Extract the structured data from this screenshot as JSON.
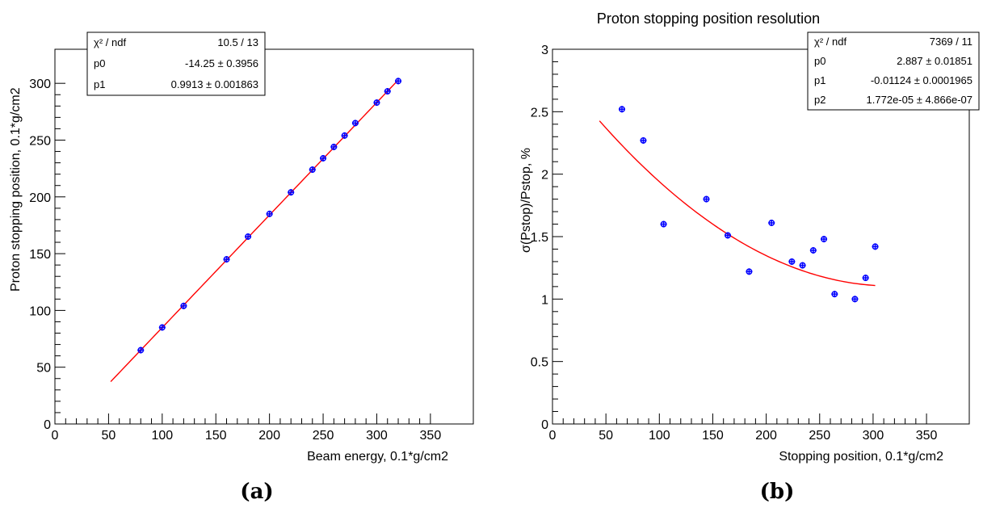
{
  "panels": [
    {
      "id": "a",
      "caption": "(a)",
      "stats": [
        {
          "label": "χ² / ndf",
          "value": "10.5 / 13"
        },
        {
          "label": "p0",
          "value": "-14.25 ± 0.3956"
        },
        {
          "label": "p1",
          "value": "0.9913 ± 0.001863"
        }
      ]
    },
    {
      "id": "b",
      "caption": "(b)",
      "stats": [
        {
          "label": "χ² / ndf",
          "value": "7369 / 11"
        },
        {
          "label": "p0",
          "value": "2.887 ± 0.01851"
        },
        {
          "label": "p1",
          "value": "-0.01124 ± 0.0001965"
        },
        {
          "label": "p2",
          "value": "1.772e-05 ± 4.866e-07"
        }
      ]
    }
  ],
  "colors": {
    "points": "#0000ff",
    "fit": "#ff0000"
  },
  "chart_data": [
    {
      "type": "scatter",
      "title": "",
      "xlabel": "Beam energy, 0.1*g/cm2",
      "ylabel": "Proton stopping position, 0.1*g/cm2",
      "xlim": [
        0,
        390
      ],
      "ylim": [
        0,
        330
      ],
      "xticks": [
        0,
        50,
        100,
        150,
        200,
        250,
        300,
        350
      ],
      "yticks": [
        0,
        50,
        100,
        150,
        200,
        250,
        300
      ],
      "grid": false,
      "points": [
        {
          "x": 80,
          "y": 65
        },
        {
          "x": 100,
          "y": 85
        },
        {
          "x": 120,
          "y": 104
        },
        {
          "x": 160,
          "y": 145
        },
        {
          "x": 180,
          "y": 165
        },
        {
          "x": 200,
          "y": 185
        },
        {
          "x": 220,
          "y": 204
        },
        {
          "x": 240,
          "y": 224
        },
        {
          "x": 250,
          "y": 234
        },
        {
          "x": 260,
          "y": 244
        },
        {
          "x": 270,
          "y": 254
        },
        {
          "x": 280,
          "y": 265
        },
        {
          "x": 300,
          "y": 283
        },
        {
          "x": 310,
          "y": 293
        },
        {
          "x": 320,
          "y": 302
        }
      ],
      "fit": {
        "model": "p0 + p1*x",
        "params": [
          -14.25,
          0.9913
        ],
        "x_range": [
          52,
          320
        ]
      }
    },
    {
      "type": "scatter",
      "title": "Proton stopping position resolution",
      "xlabel": "Stopping position, 0.1*g/cm2",
      "ylabel": "σ(Pstop)/Pstop, %",
      "xlim": [
        0,
        390
      ],
      "ylim": [
        0,
        3
      ],
      "xticks": [
        0,
        50,
        100,
        150,
        200,
        250,
        300,
        350
      ],
      "yticks": [
        0,
        0.5,
        1,
        1.5,
        2,
        2.5,
        3
      ],
      "grid": false,
      "points": [
        {
          "x": 65,
          "y": 2.52
        },
        {
          "x": 85,
          "y": 2.27
        },
        {
          "x": 104,
          "y": 1.6
        },
        {
          "x": 144,
          "y": 1.8
        },
        {
          "x": 164,
          "y": 1.51
        },
        {
          "x": 184,
          "y": 1.22
        },
        {
          "x": 205,
          "y": 1.61
        },
        {
          "x": 224,
          "y": 1.3
        },
        {
          "x": 234,
          "y": 1.27
        },
        {
          "x": 244,
          "y": 1.39
        },
        {
          "x": 254,
          "y": 1.48
        },
        {
          "x": 264,
          "y": 1.04
        },
        {
          "x": 283,
          "y": 1.0
        },
        {
          "x": 293,
          "y": 1.17
        },
        {
          "x": 302,
          "y": 1.42
        }
      ],
      "fit": {
        "model": "p0 + p1*x + p2*x^2",
        "params": [
          2.887,
          -0.01124,
          1.772e-05
        ],
        "x_range": [
          44,
          302
        ]
      }
    }
  ]
}
